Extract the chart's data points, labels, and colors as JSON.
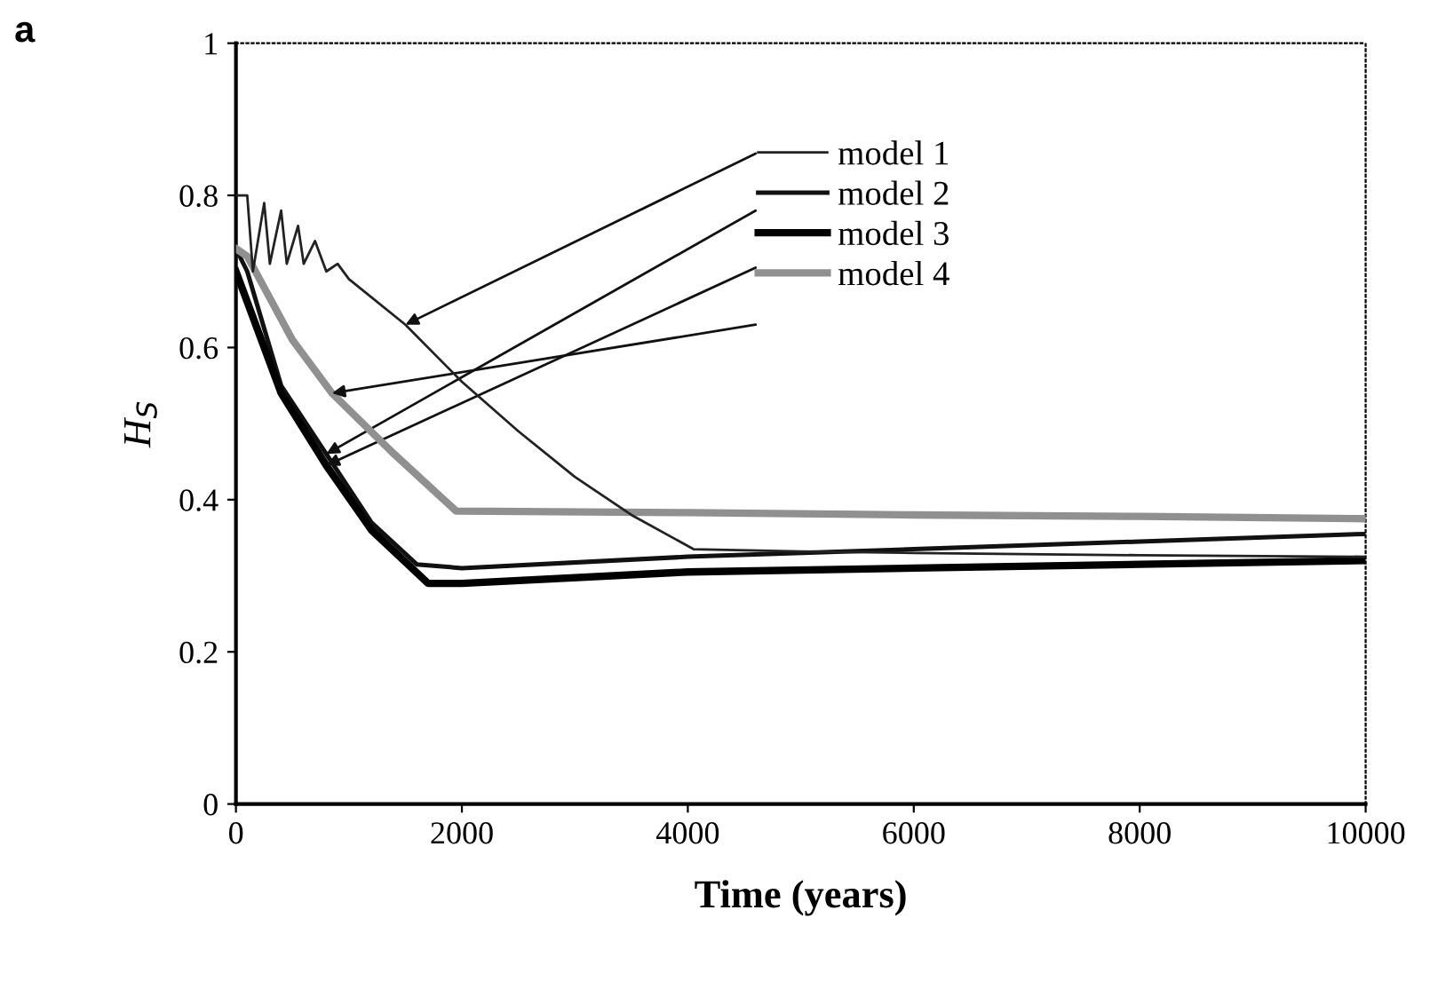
{
  "chart_data": {
    "type": "line",
    "xlabel": "Time (years)",
    "ylabel": "H$_{S}$",
    "annotations": [
      "a"
    ],
    "xlim": [
      0,
      10000
    ],
    "xticks": [
      0,
      2000,
      4000,
      6000,
      8000,
      10000
    ],
    "ylim": [
      0,
      1
    ],
    "yticks": [
      0,
      0.2,
      0.4,
      0.6,
      0.8,
      1
    ],
    "grid": false,
    "legend": "top",
    "marker": "none",
    "line_style": "solid",
    "series": [
      {
        "name": "model 1",
        "color": "#222222",
        "x": [
          0,
          100,
          150,
          250,
          300,
          400,
          450,
          550,
          600,
          700,
          800,
          900,
          1000,
          1500,
          2000,
          2500,
          3000,
          3500,
          4050,
          5000,
          6000,
          8000,
          10000
        ],
        "values": [
          0.8,
          0.8,
          0.7,
          0.79,
          0.71,
          0.78,
          0.71,
          0.76,
          0.71,
          0.74,
          0.7,
          0.71,
          0.69,
          0.63,
          0.555,
          0.49,
          0.43,
          0.38,
          0.335,
          0.332,
          0.33,
          0.327,
          0.325
        ]
      },
      {
        "name": "model 2",
        "color": "#111111",
        "x": [
          0,
          100,
          400,
          800,
          1200,
          1600,
          2000,
          4000,
          6000,
          8000,
          10000
        ],
        "values": [
          0.73,
          0.7,
          0.55,
          0.46,
          0.37,
          0.315,
          0.31,
          0.325,
          0.335,
          0.345,
          0.355
        ]
      },
      {
        "name": "model 3",
        "color": "#000000",
        "x": [
          0,
          100,
          400,
          800,
          1200,
          1700,
          2000,
          4000,
          6000,
          8000,
          10000
        ],
        "values": [
          0.7,
          0.66,
          0.54,
          0.445,
          0.36,
          0.29,
          0.29,
          0.305,
          0.31,
          0.315,
          0.32
        ]
      },
      {
        "name": "model 4",
        "color": "#909090",
        "x": [
          0,
          100,
          500,
          850,
          1400,
          1950,
          4000,
          6000,
          8000,
          10000
        ],
        "values": [
          0.73,
          0.72,
          0.61,
          0.54,
          0.46,
          0.385,
          0.383,
          0.38,
          0.378,
          0.375
        ]
      }
    ]
  }
}
